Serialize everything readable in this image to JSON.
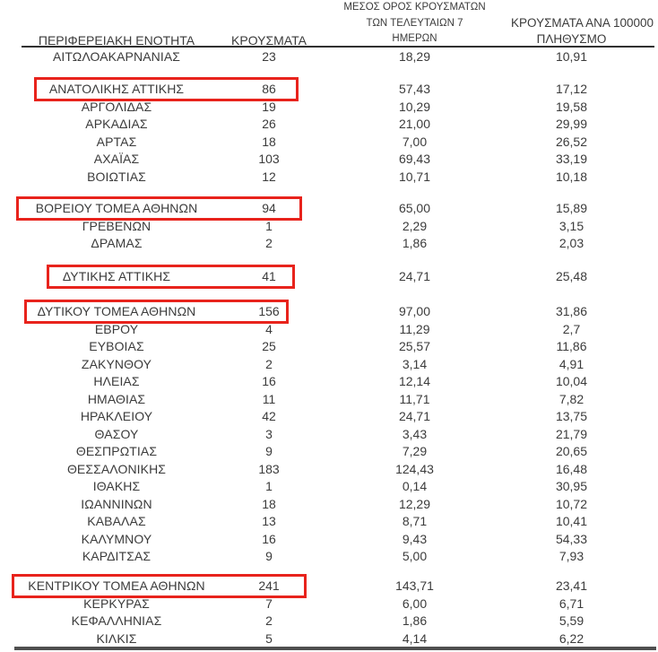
{
  "colors": {
    "highlight_border": "#e8231c",
    "text": "#3b3b3b",
    "header_rule": "#303030",
    "bottom_rule": "#4f4f4f"
  },
  "table": {
    "header": {
      "region": "ΠΕΡΙΦΕΡΕΙΑΚΗ ΕΝΟΤΗΤΑ",
      "cases": "ΚΡΟΥΣΜΑΤΑ",
      "avg7_line1": "ΜΕΣΟΣ ΟΡΟΣ ΚΡΟΥΣΜΑΤΩΝ",
      "avg7_line2": "ΤΩΝ ΤΕΛΕΥΤΑΙΩΝ 7",
      "avg7_line3": "ΗΜΕΡΩΝ",
      "per100k_line1": "ΚΡΟΥΣΜΑΤΑ ΑΝΑ 100000",
      "per100k_line2": "ΠΛΗΘΥΣΜΟ"
    },
    "rows": [
      {
        "name": "ΑΙΤΩΛΟΑΚΑΡΝΑΝΙΑΣ",
        "cases": "23",
        "avg7": "18,29",
        "per100k": "10,91",
        "highlighted": false,
        "gap_before": false
      },
      {
        "name": "ΑΝΑΤΟΛΙΚΗΣ ΑΤΤΙΚΗΣ",
        "cases": "86",
        "avg7": "57,43",
        "per100k": "17,12",
        "highlighted": true,
        "gap_before": true
      },
      {
        "name": "ΑΡΓΟΛΙΔΑΣ",
        "cases": "19",
        "avg7": "10,29",
        "per100k": "19,58",
        "highlighted": false,
        "gap_before": false
      },
      {
        "name": "ΑΡΚΑΔΙΑΣ",
        "cases": "26",
        "avg7": "21,00",
        "per100k": "29,99",
        "highlighted": false,
        "gap_before": false
      },
      {
        "name": "ΑΡΤΑΣ",
        "cases": "18",
        "avg7": "7,00",
        "per100k": "26,52",
        "highlighted": false,
        "gap_before": false
      },
      {
        "name": "ΑΧΑΪΑΣ",
        "cases": "103",
        "avg7": "69,43",
        "per100k": "33,19",
        "highlighted": false,
        "gap_before": false
      },
      {
        "name": "ΒΟΙΩΤΙΑΣ",
        "cases": "12",
        "avg7": "10,71",
        "per100k": "10,18",
        "highlighted": false,
        "gap_before": false
      },
      {
        "name": "ΒΟΡΕΙΟΥ ΤΟΜΕΑ ΑΘΗΝΩΝ",
        "cases": "94",
        "avg7": "65,00",
        "per100k": "15,89",
        "highlighted": true,
        "gap_before": true
      },
      {
        "name": "ΓΡΕΒΕΝΩΝ",
        "cases": "1",
        "avg7": "2,29",
        "per100k": "3,15",
        "highlighted": false,
        "gap_before": false
      },
      {
        "name": "ΔΡΑΜΑΣ",
        "cases": "2",
        "avg7": "1,86",
        "per100k": "2,03",
        "highlighted": false,
        "gap_before": false
      },
      {
        "name": "ΔΥΤΙΚΗΣ ΑΤΤΙΚΗΣ",
        "cases": "41",
        "avg7": "24,71",
        "per100k": "25,48",
        "highlighted": true,
        "gap_before": true
      },
      {
        "name": "ΔΥΤΙΚΟΥ ΤΟΜΕΑ ΑΘΗΝΩΝ",
        "cases": "156",
        "avg7": "97,00",
        "per100k": "31,86",
        "highlighted": true,
        "gap_before": true
      },
      {
        "name": "ΕΒΡΟΥ",
        "cases": "4",
        "avg7": "11,29",
        "per100k": "2,7",
        "highlighted": false,
        "gap_before": false
      },
      {
        "name": "ΕΥΒΟΙΑΣ",
        "cases": "25",
        "avg7": "25,57",
        "per100k": "11,86",
        "highlighted": false,
        "gap_before": false
      },
      {
        "name": "ΖΑΚΥΝΘΟΥ",
        "cases": "2",
        "avg7": "3,14",
        "per100k": "4,91",
        "highlighted": false,
        "gap_before": false
      },
      {
        "name": "ΗΛΕΙΑΣ",
        "cases": "16",
        "avg7": "12,14",
        "per100k": "10,04",
        "highlighted": false,
        "gap_before": false
      },
      {
        "name": "ΗΜΑΘΙΑΣ",
        "cases": "11",
        "avg7": "11,71",
        "per100k": "7,82",
        "highlighted": false,
        "gap_before": false
      },
      {
        "name": "ΗΡΑΚΛΕΙΟΥ",
        "cases": "42",
        "avg7": "24,71",
        "per100k": "13,75",
        "highlighted": false,
        "gap_before": false
      },
      {
        "name": "ΘΑΣΟΥ",
        "cases": "3",
        "avg7": "3,43",
        "per100k": "21,79",
        "highlighted": false,
        "gap_before": false
      },
      {
        "name": "ΘΕΣΠΡΩΤΙΑΣ",
        "cases": "9",
        "avg7": "7,29",
        "per100k": "20,65",
        "highlighted": false,
        "gap_before": false
      },
      {
        "name": "ΘΕΣΣΑΛΟΝΙΚΗΣ",
        "cases": "183",
        "avg7": "124,43",
        "per100k": "16,48",
        "highlighted": false,
        "gap_before": false
      },
      {
        "name": "ΙΘΑΚΗΣ",
        "cases": "1",
        "avg7": "0,14",
        "per100k": "30,95",
        "highlighted": false,
        "gap_before": false
      },
      {
        "name": "ΙΩΑΝΝΙΝΩΝ",
        "cases": "18",
        "avg7": "12,29",
        "per100k": "10,72",
        "highlighted": false,
        "gap_before": false
      },
      {
        "name": "ΚΑΒΑΛΑΣ",
        "cases": "13",
        "avg7": "8,71",
        "per100k": "10,41",
        "highlighted": false,
        "gap_before": false
      },
      {
        "name": "ΚΑΛΥΜΝΟΥ",
        "cases": "16",
        "avg7": "9,43",
        "per100k": "54,33",
        "highlighted": false,
        "gap_before": false
      },
      {
        "name": "ΚΑΡΔΙΤΣΑΣ",
        "cases": "9",
        "avg7": "5,00",
        "per100k": "7,93",
        "highlighted": false,
        "gap_before": false
      },
      {
        "name": "ΚΕΝΤΡΙΚΟΥ ΤΟΜΕΑ ΑΘΗΝΩΝ",
        "cases": "241",
        "avg7": "143,71",
        "per100k": "23,41",
        "highlighted": true,
        "gap_before": true
      },
      {
        "name": "ΚΕΡΚΥΡΑΣ",
        "cases": "7",
        "avg7": "6,00",
        "per100k": "6,71",
        "highlighted": false,
        "gap_before": false
      },
      {
        "name": "ΚΕΦΑΛΛΗΝΙΑΣ",
        "cases": "2",
        "avg7": "1,86",
        "per100k": "5,59",
        "highlighted": false,
        "gap_before": false
      },
      {
        "name": "ΚΙΛΚΙΣ",
        "cases": "5",
        "avg7": "4,14",
        "per100k": "6,22",
        "highlighted": false,
        "gap_before": false
      }
    ]
  }
}
